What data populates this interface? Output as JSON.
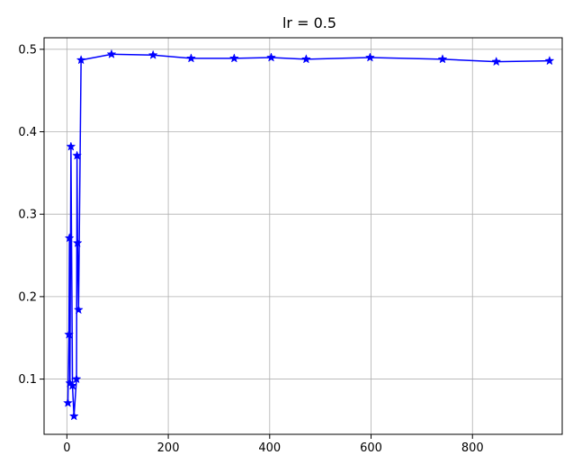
{
  "chart_data": {
    "type": "line",
    "title": "lr = 0.5",
    "xlabel": "",
    "ylabel": "",
    "xlim": [
      -45,
      977
    ],
    "ylim": [
      0.033,
      0.514
    ],
    "xticks": [
      0,
      200,
      400,
      600,
      800
    ],
    "yticks": [
      0.1,
      0.2,
      0.3,
      0.4,
      0.5
    ],
    "xtick_labels": [
      "0",
      "200",
      "400",
      "600",
      "800"
    ],
    "ytick_labels": [
      "0.1",
      "0.2",
      "0.3",
      "0.4",
      "0.5"
    ],
    "grid": true,
    "marker": "star",
    "line_color": "#0000ff",
    "series": [
      {
        "x": [
          2,
          4,
          5,
          6,
          8,
          11,
          14,
          19,
          20,
          21,
          23,
          28,
          88,
          170,
          245,
          330,
          403,
          472,
          598,
          741,
          847,
          952
        ],
        "y": [
          0.071,
          0.154,
          0.271,
          0.095,
          0.382,
          0.092,
          0.055,
          0.1,
          0.371,
          0.265,
          0.184,
          0.487,
          0.494,
          0.493,
          0.489,
          0.489,
          0.49,
          0.488,
          0.49,
          0.488,
          0.485,
          0.486
        ]
      }
    ]
  }
}
